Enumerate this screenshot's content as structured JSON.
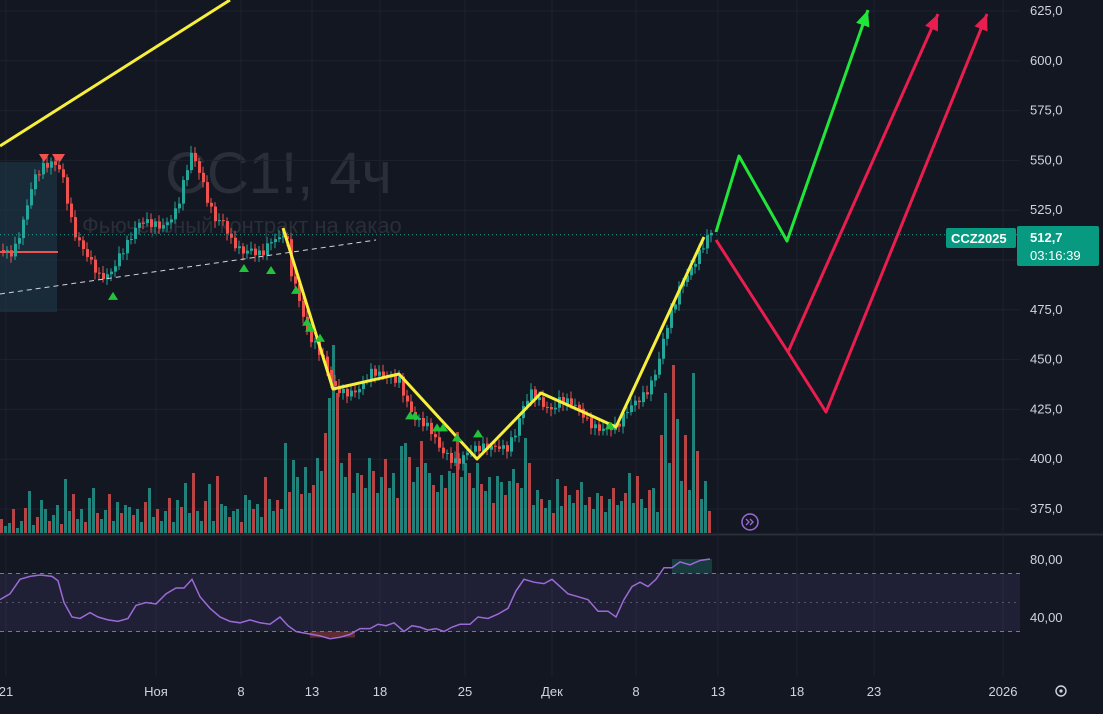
{
  "watermark": {
    "title": "CC1!, 4ч",
    "subtitle": "Фьючерсный контракт на какао"
  },
  "colors": {
    "background": "#131722",
    "grid": "#1e222d",
    "up": "#26a69a",
    "down": "#ef5350",
    "trend_yellow": "#f7ef3b",
    "arrow_green": "#22e53a",
    "arrow_red": "#e91e4f",
    "rsi_line": "#9c6ad6",
    "badge_green": "#089981",
    "axis_text": "#d1d4dc"
  },
  "price_badge": {
    "symbol": "CCZ2025",
    "price": "512,7",
    "countdown": "03:16:39"
  },
  "chart_data": [
    {
      "type": "candlestick",
      "title": "CC1!, 4ч",
      "subtitle": "Фьючерсный контракт на какао",
      "y_tick_labels": [
        "375,0",
        "400,0",
        "425,0",
        "450,0",
        "475,0",
        "500,0",
        "525,0",
        "550,0",
        "575,0",
        "600,0",
        "625,0"
      ],
      "y_ticks": [
        375,
        400,
        425,
        450,
        475,
        500,
        525,
        550,
        575,
        600,
        625
      ],
      "ylim": [
        362,
        631
      ],
      "x_tick_labels": [
        "21",
        "Ноя",
        "8",
        "13",
        "18",
        "25",
        "Дек",
        "8",
        "13",
        "18",
        "23",
        "2026"
      ],
      "current_price": 512.7,
      "price_path": [
        [
          0,
          505
        ],
        [
          12,
          506
        ],
        [
          22,
          520
        ],
        [
          32,
          538
        ],
        [
          42,
          545
        ],
        [
          52,
          550
        ],
        [
          60,
          548
        ],
        [
          66,
          532
        ],
        [
          72,
          515
        ],
        [
          80,
          505
        ],
        [
          88,
          498
        ],
        [
          98,
          492
        ],
        [
          108,
          495
        ],
        [
          118,
          503
        ],
        [
          128,
          508
        ],
        [
          140,
          518
        ],
        [
          152,
          520
        ],
        [
          164,
          519
        ],
        [
          176,
          524
        ],
        [
          184,
          540
        ],
        [
          190,
          552
        ],
        [
          198,
          546
        ],
        [
          206,
          533
        ],
        [
          214,
          522
        ],
        [
          222,
          518
        ],
        [
          230,
          507
        ],
        [
          240,
          503
        ],
        [
          250,
          507
        ],
        [
          260,
          505
        ],
        [
          270,
          509
        ],
        [
          280,
          508
        ],
        [
          284,
          514
        ],
        [
          290,
          493
        ],
        [
          298,
          482
        ],
        [
          306,
          466
        ],
        [
          316,
          456
        ],
        [
          324,
          446
        ],
        [
          332,
          434
        ],
        [
          342,
          434
        ],
        [
          352,
          436
        ],
        [
          360,
          438
        ],
        [
          370,
          442
        ],
        [
          380,
          440
        ],
        [
          390,
          441
        ],
        [
          398,
          442
        ],
        [
          406,
          430
        ],
        [
          414,
          420
        ],
        [
          422,
          416
        ],
        [
          430,
          412
        ],
        [
          438,
          406
        ],
        [
          446,
          404
        ],
        [
          456,
          400
        ],
        [
          466,
          402
        ],
        [
          476,
          403
        ],
        [
          486,
          406
        ],
        [
          496,
          409
        ],
        [
          506,
          407
        ],
        [
          514,
          412
        ],
        [
          522,
          424
        ],
        [
          530,
          432
        ],
        [
          540,
          430
        ],
        [
          550,
          427
        ],
        [
          558,
          430
        ],
        [
          566,
          427
        ],
        [
          576,
          424
        ],
        [
          586,
          420
        ],
        [
          596,
          418
        ],
        [
          606,
          416
        ],
        [
          616,
          414
        ],
        [
          624,
          421
        ],
        [
          632,
          428
        ],
        [
          640,
          433
        ],
        [
          648,
          438
        ],
        [
          656,
          446
        ],
        [
          664,
          462
        ],
        [
          672,
          474
        ],
        [
          680,
          488
        ],
        [
          688,
          496
        ],
        [
          696,
          504
        ],
        [
          704,
          510
        ],
        [
          710,
          512.7
        ]
      ],
      "volume_bars": [
        [
          0,
          14
        ],
        [
          4,
          7
        ],
        [
          8,
          10
        ],
        [
          12,
          24
        ],
        [
          16,
          5
        ],
        [
          20,
          12
        ],
        [
          24,
          25
        ],
        [
          28,
          42
        ],
        [
          32,
          8
        ],
        [
          36,
          16
        ],
        [
          40,
          33
        ],
        [
          44,
          24
        ],
        [
          48,
          12
        ],
        [
          52,
          18
        ],
        [
          56,
          28
        ],
        [
          60,
          9
        ],
        [
          64,
          54
        ],
        [
          68,
          22
        ],
        [
          72,
          39
        ],
        [
          76,
          14
        ],
        [
          80,
          24
        ],
        [
          84,
          11
        ],
        [
          88,
          35
        ],
        [
          92,
          45
        ],
        [
          96,
          20
        ],
        [
          100,
          14
        ],
        [
          104,
          23
        ],
        [
          108,
          39
        ],
        [
          112,
          12
        ],
        [
          116,
          31
        ],
        [
          120,
          20
        ],
        [
          124,
          28
        ],
        [
          128,
          26
        ],
        [
          132,
          18
        ],
        [
          136,
          24
        ],
        [
          140,
          11
        ],
        [
          144,
          31
        ],
        [
          148,
          45
        ],
        [
          152,
          16
        ],
        [
          156,
          24
        ],
        [
          160,
          12
        ],
        [
          164,
          22
        ],
        [
          168,
          35
        ],
        [
          172,
          11
        ],
        [
          176,
          33
        ],
        [
          180,
          26
        ],
        [
          184,
          50
        ],
        [
          188,
          20
        ],
        [
          192,
          60
        ],
        [
          196,
          22
        ],
        [
          200,
          12
        ],
        [
          204,
          32
        ],
        [
          208,
          49
        ],
        [
          212,
          12
        ],
        [
          216,
          57
        ],
        [
          220,
          29
        ],
        [
          224,
          27
        ],
        [
          228,
          16
        ],
        [
          232,
          22
        ],
        [
          236,
          24
        ],
        [
          240,
          11
        ],
        [
          244,
          38
        ],
        [
          248,
          33
        ],
        [
          252,
          24
        ],
        [
          256,
          29
        ],
        [
          260,
          16
        ],
        [
          264,
          56
        ],
        [
          268,
          34
        ],
        [
          272,
          22
        ],
        [
          276,
          33
        ],
        [
          280,
          24
        ],
        [
          284,
          90
        ],
        [
          288,
          41
        ],
        [
          292,
          73
        ],
        [
          296,
          56
        ],
        [
          300,
          39
        ],
        [
          304,
          66
        ],
        [
          308,
          40
        ],
        [
          312,
          48
        ],
        [
          316,
          75
        ],
        [
          320,
          62
        ],
        [
          324,
          100
        ],
        [
          328,
          135
        ],
        [
          332,
          188
        ],
        [
          336,
          140
        ],
        [
          340,
          70
        ],
        [
          344,
          56
        ],
        [
          348,
          80
        ],
        [
          352,
          40
        ],
        [
          356,
          60
        ],
        [
          360,
          58
        ],
        [
          364,
          45
        ],
        [
          368,
          75
        ],
        [
          372,
          62
        ],
        [
          376,
          40
        ],
        [
          380,
          56
        ],
        [
          384,
          74
        ],
        [
          388,
          45
        ],
        [
          392,
          60
        ],
        [
          396,
          35
        ],
        [
          400,
          87
        ],
        [
          404,
          90
        ],
        [
          408,
          76
        ],
        [
          412,
          51
        ],
        [
          416,
          66
        ],
        [
          420,
          92
        ],
        [
          424,
          70
        ],
        [
          428,
          60
        ],
        [
          432,
          48
        ],
        [
          436,
          41
        ],
        [
          440,
          58
        ],
        [
          444,
          45
        ],
        [
          448,
          62
        ],
        [
          452,
          60
        ],
        [
          456,
          101
        ],
        [
          460,
          56
        ],
        [
          464,
          70
        ],
        [
          468,
          60
        ],
        [
          472,
          45
        ],
        [
          476,
          70
        ],
        [
          480,
          49
        ],
        [
          484,
          42
        ],
        [
          488,
          56
        ],
        [
          492,
          30
        ],
        [
          496,
          57
        ],
        [
          500,
          51
        ],
        [
          504,
          38
        ],
        [
          508,
          52
        ],
        [
          512,
          64
        ],
        [
          516,
          50
        ],
        [
          520,
          45
        ],
        [
          524,
          95
        ],
        [
          528,
          70
        ],
        [
          532,
          28
        ],
        [
          536,
          43
        ],
        [
          540,
          34
        ],
        [
          544,
          25
        ],
        [
          548,
          33
        ],
        [
          552,
          20
        ],
        [
          556,
          54
        ],
        [
          560,
          27
        ],
        [
          564,
          47
        ],
        [
          568,
          38
        ],
        [
          572,
          30
        ],
        [
          576,
          43
        ],
        [
          580,
          51
        ],
        [
          584,
          28
        ],
        [
          588,
          36
        ],
        [
          592,
          24
        ],
        [
          596,
          40
        ],
        [
          600,
          37
        ],
        [
          604,
          21
        ],
        [
          608,
          34
        ],
        [
          612,
          45
        ],
        [
          616,
          28
        ],
        [
          620,
          32
        ],
        [
          624,
          40
        ],
        [
          628,
          60
        ],
        [
          632,
          30
        ],
        [
          636,
          57
        ],
        [
          640,
          34
        ],
        [
          644,
          25
        ],
        [
          648,
          43
        ],
        [
          652,
          45
        ],
        [
          656,
          21
        ],
        [
          660,
          98
        ],
        [
          664,
          140
        ],
        [
          668,
          70
        ],
        [
          672,
          168
        ],
        [
          676,
          114
        ],
        [
          680,
          52
        ],
        [
          684,
          98
        ],
        [
          688,
          43
        ],
        [
          692,
          160
        ],
        [
          696,
          82
        ],
        [
          700,
          34
        ],
        [
          704,
          52
        ],
        [
          708,
          22
        ]
      ],
      "sell_markers": [
        [
          44,
          553
        ],
        [
          57,
          553
        ],
        [
          60,
          553
        ]
      ],
      "buy_markers": [
        [
          113,
          487
        ],
        [
          244,
          501
        ],
        [
          271,
          500
        ],
        [
          296,
          490
        ],
        [
          307,
          474
        ],
        [
          310,
          471
        ],
        [
          320,
          466
        ],
        [
          410,
          427
        ],
        [
          415,
          427
        ],
        [
          437,
          421
        ],
        [
          443,
          421
        ],
        [
          457,
          416
        ],
        [
          478,
          418
        ],
        [
          610,
          422
        ]
      ]
    },
    {
      "type": "line",
      "title": "",
      "y_tick_labels": [
        "40,00",
        "80,00"
      ],
      "y_ticks": [
        40,
        80
      ],
      "ylim": [
        22,
        88
      ],
      "band": [
        30,
        70
      ],
      "midline": 50,
      "rsi": [
        [
          0,
          52
        ],
        [
          10,
          56
        ],
        [
          20,
          66
        ],
        [
          30,
          68
        ],
        [
          40,
          69
        ],
        [
          52,
          68
        ],
        [
          58,
          65
        ],
        [
          64,
          50
        ],
        [
          72,
          40
        ],
        [
          80,
          39
        ],
        [
          90,
          43
        ],
        [
          98,
          40
        ],
        [
          108,
          38
        ],
        [
          118,
          37
        ],
        [
          128,
          39
        ],
        [
          136,
          48
        ],
        [
          146,
          50
        ],
        [
          156,
          49
        ],
        [
          166,
          56
        ],
        [
          176,
          60
        ],
        [
          184,
          60
        ],
        [
          192,
          66
        ],
        [
          200,
          54
        ],
        [
          210,
          46
        ],
        [
          220,
          40
        ],
        [
          230,
          37
        ],
        [
          240,
          36
        ],
        [
          250,
          38
        ],
        [
          260,
          36
        ],
        [
          270,
          35
        ],
        [
          280,
          40
        ],
        [
          288,
          34
        ],
        [
          296,
          30
        ],
        [
          304,
          29
        ],
        [
          312,
          28
        ],
        [
          320,
          27
        ],
        [
          330,
          25
        ],
        [
          340,
          26
        ],
        [
          350,
          28
        ],
        [
          360,
          32
        ],
        [
          370,
          32
        ],
        [
          378,
          35
        ],
        [
          386,
          34
        ],
        [
          394,
          36
        ],
        [
          404,
          30
        ],
        [
          412,
          34
        ],
        [
          420,
          33
        ],
        [
          428,
          31
        ],
        [
          436,
          32
        ],
        [
          444,
          30
        ],
        [
          452,
          33
        ],
        [
          460,
          35
        ],
        [
          470,
          35
        ],
        [
          478,
          40
        ],
        [
          488,
          39
        ],
        [
          498,
          42
        ],
        [
          508,
          46
        ],
        [
          516,
          58
        ],
        [
          524,
          66
        ],
        [
          534,
          64
        ],
        [
          544,
          63
        ],
        [
          552,
          66
        ],
        [
          560,
          61
        ],
        [
          568,
          56
        ],
        [
          578,
          54
        ],
        [
          588,
          52
        ],
        [
          598,
          44
        ],
        [
          608,
          44
        ],
        [
          616,
          40
        ],
        [
          624,
          52
        ],
        [
          632,
          61
        ],
        [
          640,
          64
        ],
        [
          648,
          61
        ],
        [
          656,
          66
        ],
        [
          664,
          74
        ],
        [
          672,
          74
        ],
        [
          680,
          78
        ],
        [
          690,
          76
        ],
        [
          700,
          79
        ],
        [
          710,
          80
        ]
      ]
    }
  ]
}
